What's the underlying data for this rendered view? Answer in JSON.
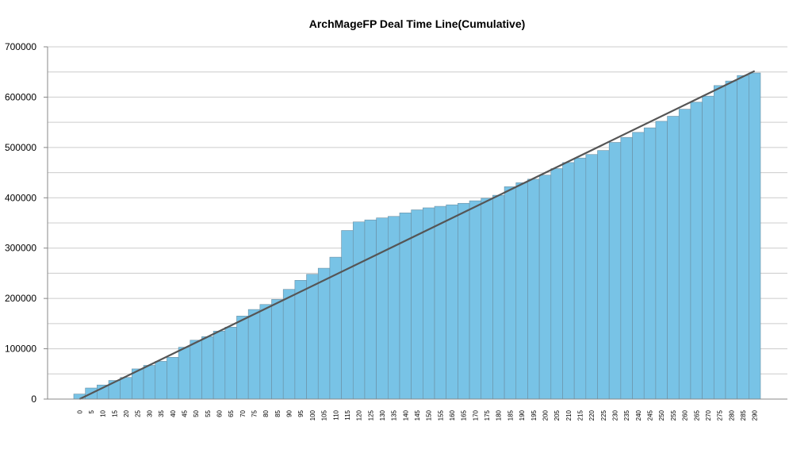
{
  "chart_data": {
    "type": "bar",
    "title": "ArchMageFP Deal Time Line(Cumulative)",
    "xlabel": "",
    "ylabel": "",
    "ylim": [
      0,
      700000
    ],
    "yticks": [
      0,
      100000,
      200000,
      300000,
      400000,
      500000,
      600000,
      700000
    ],
    "ytick_labels": [
      "0",
      "100000",
      "200000",
      "300000",
      "400000",
      "500000",
      "600000",
      "700000"
    ],
    "grid": true,
    "legend": "none",
    "categories": [
      "0",
      "5",
      "10",
      "15",
      "20",
      "25",
      "30",
      "35",
      "40",
      "45",
      "50",
      "55",
      "60",
      "65",
      "70",
      "75",
      "80",
      "85",
      "90",
      "95",
      "100",
      "105",
      "110",
      "115",
      "120",
      "125",
      "130",
      "135",
      "140",
      "145",
      "150",
      "155",
      "160",
      "165",
      "170",
      "175",
      "180",
      "185",
      "190",
      "195",
      "200",
      "205",
      "210",
      "215",
      "220",
      "225",
      "230",
      "235",
      "240",
      "245",
      "250",
      "255",
      "260",
      "265",
      "270",
      "275",
      "280",
      "285",
      "290"
    ],
    "series": [
      {
        "values": [
          10000,
          22000,
          28000,
          37000,
          43000,
          60000,
          67000,
          75000,
          83000,
          103000,
          117000,
          124000,
          135000,
          143000,
          165000,
          178000,
          188000,
          198000,
          218000,
          236000,
          248000,
          260000,
          282000,
          335000,
          352000,
          356000,
          360000,
          363000,
          370000,
          376000,
          380000,
          383000,
          386000,
          389000,
          394000,
          399000,
          405000,
          422000,
          430000,
          437000,
          445000,
          458000,
          470000,
          479000,
          486000,
          494000,
          510000,
          520000,
          530000,
          539000,
          552000,
          562000,
          576000,
          590000,
          602000,
          623000,
          632000,
          643000,
          648000
        ]
      }
    ],
    "trend_line": {
      "start": [
        0,
        0
      ],
      "end": [
        290,
        652000
      ]
    },
    "colors": {
      "bar": "#78c3e6",
      "bar_edge": "#6a8fa3",
      "trend": "#555555",
      "grid": "#cccccc",
      "axis": "#888888"
    }
  }
}
